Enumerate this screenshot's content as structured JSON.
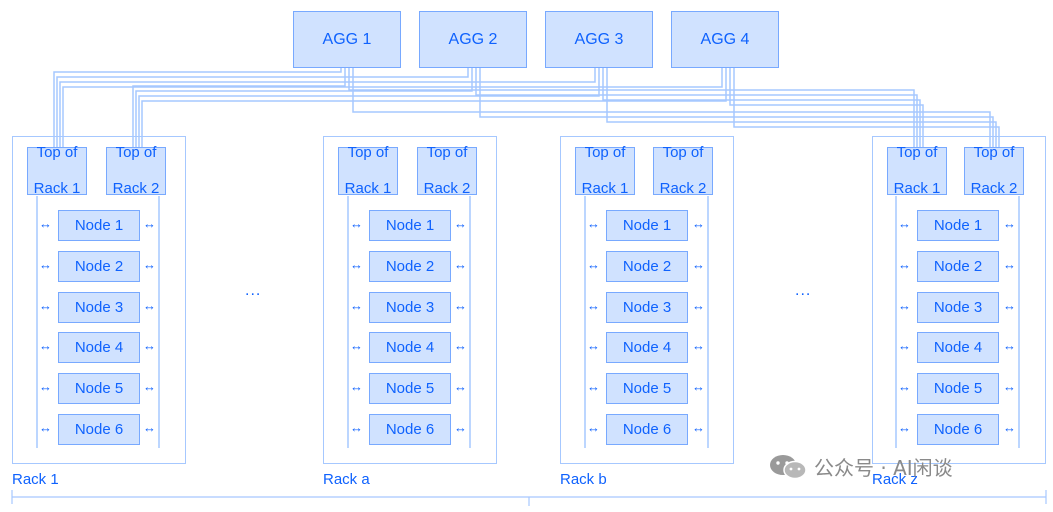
{
  "aggs": [
    "AGG 1",
    "AGG 2",
    "AGG 3",
    "AGG 4"
  ],
  "tor_labels": {
    "t1_line1": "Top of",
    "t1_line2": "Rack 1",
    "t2_line1": "Top of",
    "t2_line2": "Rack 2"
  },
  "nodes": [
    "Node 1",
    "Node 2",
    "Node 3",
    "Node 4",
    "Node 5",
    "Node 6"
  ],
  "racks": [
    "Rack 1",
    "Rack a",
    "Rack b",
    "Rack z"
  ],
  "ellipsis": "...",
  "link_glyph": "↔",
  "watermark": "公众号 · AI闲谈",
  "colors": {
    "box_fill": "#d0e2ff",
    "box_border": "#78a9ff",
    "text": "#0f62fe",
    "wire": "#a6c8ff"
  }
}
